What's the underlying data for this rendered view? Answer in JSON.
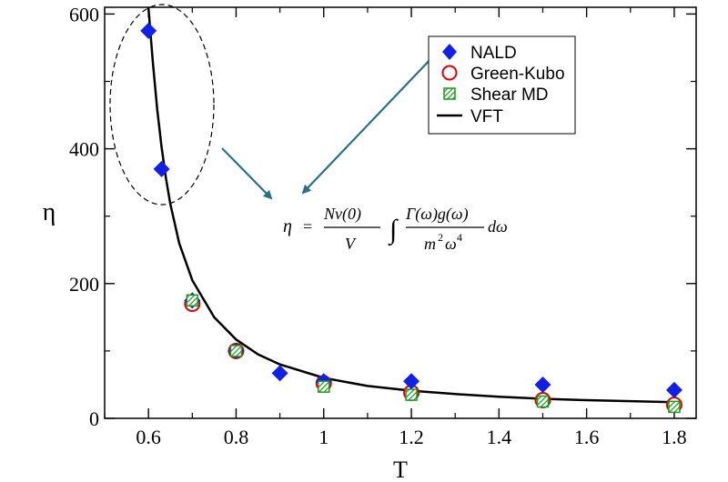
{
  "chart_data": {
    "type": "scatter",
    "xlabel": "T",
    "ylabel": "η",
    "xlim": [
      0.5,
      1.85
    ],
    "ylim": [
      0,
      610
    ],
    "xticks": [
      0.6,
      0.8,
      1.0,
      1.2,
      1.4,
      1.6,
      1.8
    ],
    "xtick_labels": [
      "0.6",
      "0.8",
      "1",
      "1.2",
      "1.4",
      "1.6",
      "1.8"
    ],
    "yticks": [
      0,
      200,
      400,
      600
    ],
    "ytick_labels": [
      "0",
      "200",
      "400",
      "600"
    ],
    "grid": false,
    "legend_position": "top-right",
    "series": [
      {
        "name": "NALD",
        "marker": "diamond",
        "color": "#1020e8",
        "x": [
          0.6,
          0.63,
          0.7,
          0.8,
          0.9,
          1.0,
          1.2,
          1.5,
          1.8
        ],
        "y": [
          575,
          370,
          175,
          100,
          67,
          55,
          55,
          50,
          42
        ]
      },
      {
        "name": "Green-Kubo",
        "marker": "circle-open",
        "color": "#e00000",
        "x": [
          0.7,
          0.8,
          1.0,
          1.2,
          1.5,
          1.8
        ],
        "y": [
          170,
          100,
          52,
          38,
          27,
          20
        ]
      },
      {
        "name": "Shear MD",
        "marker": "square-hatched",
        "color": "#1a9a1a",
        "x": [
          0.7,
          0.8,
          1.0,
          1.2,
          1.5,
          1.8
        ],
        "y": [
          175,
          100,
          47,
          35,
          25,
          17
        ]
      },
      {
        "name": "VFT",
        "marker": "line",
        "color": "#000000",
        "x": [
          0.6,
          0.61,
          0.62,
          0.63,
          0.64,
          0.65,
          0.67,
          0.7,
          0.75,
          0.8,
          0.85,
          0.9,
          1.0,
          1.1,
          1.2,
          1.3,
          1.4,
          1.5,
          1.6,
          1.7,
          1.8
        ],
        "y": [
          610,
          528,
          458,
          402,
          356,
          318,
          260,
          205,
          150,
          117,
          95,
          80,
          60,
          48,
          41,
          36,
          32,
          29,
          27,
          25.5,
          24
        ]
      }
    ],
    "annotations": {
      "formula": {
        "lhs": "η",
        "eq": "=",
        "frac1_num": "Nν(0)",
        "frac1_den": "V",
        "integral": "∫",
        "frac2_num": "Γ(ω)g(ω)",
        "frac2_den_base": "m",
        "frac2_den_exp": "2",
        "frac2_den_base2": "ω",
        "frac2_den_exp2": "4",
        "d": "dω"
      },
      "highlight": "dashed-ellipse",
      "arrow_color": "#2a6f8f"
    }
  }
}
